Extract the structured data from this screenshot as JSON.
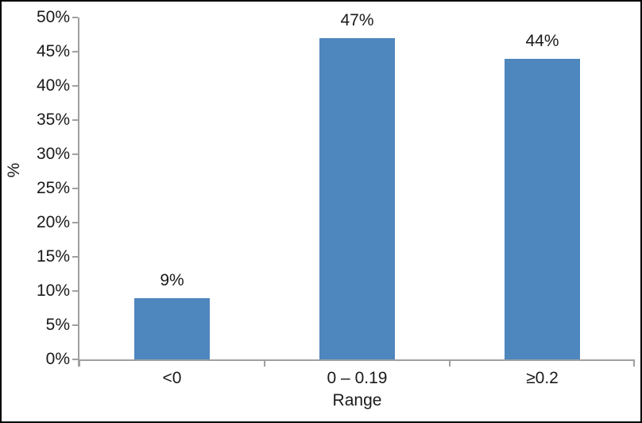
{
  "figure": {
    "background": "#ffffff",
    "frame_color": "#000000"
  },
  "chart_data": {
    "type": "bar",
    "categories": [
      "<0",
      "0 – 0.19",
      "≥0.2"
    ],
    "values": [
      9,
      47,
      44
    ],
    "bar_labels": [
      "9%",
      "47%",
      "44%"
    ],
    "xlabel": "Range",
    "ylabel": "%",
    "ylim": [
      0,
      50
    ],
    "ytick_step": 5,
    "ytick_labels": [
      "0%",
      "5%",
      "10%",
      "15%",
      "20%",
      "25%",
      "30%",
      "35%",
      "40%",
      "45%",
      "50%"
    ],
    "bar_color": "#4e86be",
    "axis_color": "#a0a0a0",
    "text_color": "#1a1a1a",
    "grid": false,
    "legend": "none"
  }
}
